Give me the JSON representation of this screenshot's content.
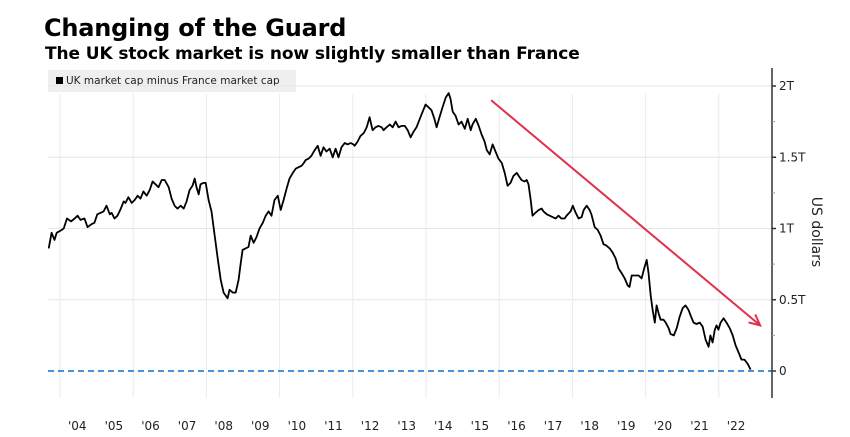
{
  "chart_data": {
    "type": "line",
    "title": "Changing of the Guard",
    "subtitle": "The UK stock market is now slightly smaller than France",
    "legend": [
      {
        "label": "UK market cap minus France market cap",
        "color": "#000000"
      }
    ],
    "legend_position": "top-left",
    "xlabel": "",
    "ylabel": "US dollars",
    "y_axis_side": "right",
    "ylim": [
      -0.2,
      2.1
    ],
    "xlim": [
      2003.7,
      2023.3
    ],
    "yticks": [
      {
        "value": 2.0,
        "label": "2T"
      },
      {
        "value": 1.5,
        "label": "1.5T"
      },
      {
        "value": 1.0,
        "label": "1T"
      },
      {
        "value": 0.5,
        "label": "0.5T"
      },
      {
        "value": 0,
        "label": "0"
      }
    ],
    "xticks": [
      {
        "value": 2004.5,
        "label": "'04"
      },
      {
        "value": 2005.5,
        "label": "'05"
      },
      {
        "value": 2006.5,
        "label": "'06"
      },
      {
        "value": 2007.5,
        "label": "'07"
      },
      {
        "value": 2008.5,
        "label": "'08"
      },
      {
        "value": 2009.5,
        "label": "'09"
      },
      {
        "value": 2010.5,
        "label": "'10"
      },
      {
        "value": 2011.5,
        "label": "'11"
      },
      {
        "value": 2012.5,
        "label": "'12"
      },
      {
        "value": 2013.5,
        "label": "'13"
      },
      {
        "value": 2014.5,
        "label": "'14"
      },
      {
        "value": 2015.5,
        "label": "'15"
      },
      {
        "value": 2016.5,
        "label": "'16"
      },
      {
        "value": 2017.5,
        "label": "'17"
      },
      {
        "value": 2018.5,
        "label": "'18"
      },
      {
        "value": 2019.5,
        "label": "'19"
      },
      {
        "value": 2020.5,
        "label": "'20"
      },
      {
        "value": 2021.5,
        "label": "'21"
      },
      {
        "value": 2022.5,
        "label": "'22"
      }
    ],
    "grid": true,
    "reference_line": {
      "value": 0,
      "style": "dashed",
      "color": "#4a90d9"
    },
    "annotation_arrow": {
      "from": [
        2015.78,
        1.9
      ],
      "to": [
        2023.13,
        0.32
      ],
      "color": "#e0304e"
    },
    "series": [
      {
        "name": "UK market cap minus France market cap",
        "color": "#000000",
        "points": [
          [
            2003.69,
            0.86
          ],
          [
            2003.77,
            0.97
          ],
          [
            2003.85,
            0.92
          ],
          [
            2003.91,
            0.97
          ],
          [
            2004.05,
            0.99
          ],
          [
            2004.1,
            1.0
          ],
          [
            2004.19,
            1.07
          ],
          [
            2004.3,
            1.05
          ],
          [
            2004.4,
            1.07
          ],
          [
            2004.48,
            1.09
          ],
          [
            2004.56,
            1.06
          ],
          [
            2004.67,
            1.07
          ],
          [
            2004.75,
            1.01
          ],
          [
            2004.86,
            1.03
          ],
          [
            2004.94,
            1.04
          ],
          [
            2005.02,
            1.1
          ],
          [
            2005.11,
            1.11
          ],
          [
            2005.19,
            1.12
          ],
          [
            2005.27,
            1.16
          ],
          [
            2005.36,
            1.1
          ],
          [
            2005.41,
            1.11
          ],
          [
            2005.49,
            1.07
          ],
          [
            2005.57,
            1.09
          ],
          [
            2005.66,
            1.14
          ],
          [
            2005.74,
            1.19
          ],
          [
            2005.79,
            1.18
          ],
          [
            2005.87,
            1.22
          ],
          [
            2005.96,
            1.18
          ],
          [
            2006.04,
            1.2
          ],
          [
            2006.12,
            1.23
          ],
          [
            2006.2,
            1.21
          ],
          [
            2006.28,
            1.26
          ],
          [
            2006.37,
            1.23
          ],
          [
            2006.45,
            1.27
          ],
          [
            2006.53,
            1.33
          ],
          [
            2006.61,
            1.31
          ],
          [
            2006.69,
            1.29
          ],
          [
            2006.78,
            1.34
          ],
          [
            2006.86,
            1.34
          ],
          [
            2006.97,
            1.29
          ],
          [
            2007.05,
            1.21
          ],
          [
            2007.13,
            1.16
          ],
          [
            2007.21,
            1.14
          ],
          [
            2007.3,
            1.16
          ],
          [
            2007.38,
            1.14
          ],
          [
            2007.46,
            1.19
          ],
          [
            2007.54,
            1.27
          ],
          [
            2007.62,
            1.3
          ],
          [
            2007.68,
            1.35
          ],
          [
            2007.73,
            1.29
          ],
          [
            2007.79,
            1.24
          ],
          [
            2007.84,
            1.31
          ],
          [
            2007.92,
            1.32
          ],
          [
            2007.98,
            1.32
          ],
          [
            2008.06,
            1.2
          ],
          [
            2008.14,
            1.12
          ],
          [
            2008.22,
            0.96
          ],
          [
            2008.31,
            0.79
          ],
          [
            2008.39,
            0.64
          ],
          [
            2008.47,
            0.55
          ],
          [
            2008.58,
            0.51
          ],
          [
            2008.63,
            0.57
          ],
          [
            2008.72,
            0.55
          ],
          [
            2008.8,
            0.55
          ],
          [
            2008.88,
            0.64
          ],
          [
            2008.93,
            0.74
          ],
          [
            2008.99,
            0.85
          ],
          [
            2009.07,
            0.86
          ],
          [
            2009.15,
            0.87
          ],
          [
            2009.21,
            0.95
          ],
          [
            2009.29,
            0.9
          ],
          [
            2009.37,
            0.94
          ],
          [
            2009.45,
            1.0
          ],
          [
            2009.54,
            1.04
          ],
          [
            2009.62,
            1.09
          ],
          [
            2009.7,
            1.12
          ],
          [
            2009.78,
            1.09
          ],
          [
            2009.86,
            1.2
          ],
          [
            2009.95,
            1.23
          ],
          [
            2010.03,
            1.13
          ],
          [
            2010.11,
            1.2
          ],
          [
            2010.19,
            1.28
          ],
          [
            2010.27,
            1.35
          ],
          [
            2010.36,
            1.39
          ],
          [
            2010.44,
            1.42
          ],
          [
            2010.52,
            1.43
          ],
          [
            2010.6,
            1.44
          ],
          [
            2010.66,
            1.46
          ],
          [
            2010.71,
            1.48
          ],
          [
            2010.79,
            1.49
          ],
          [
            2010.87,
            1.51
          ],
          [
            2010.96,
            1.55
          ],
          [
            2011.04,
            1.58
          ],
          [
            2011.12,
            1.51
          ],
          [
            2011.2,
            1.57
          ],
          [
            2011.28,
            1.54
          ],
          [
            2011.37,
            1.56
          ],
          [
            2011.45,
            1.5
          ],
          [
            2011.53,
            1.56
          ],
          [
            2011.61,
            1.5
          ],
          [
            2011.69,
            1.57
          ],
          [
            2011.78,
            1.6
          ],
          [
            2011.86,
            1.59
          ],
          [
            2011.94,
            1.6
          ],
          [
            2012.02,
            1.59
          ],
          [
            2012.05,
            1.58
          ],
          [
            2012.13,
            1.61
          ],
          [
            2012.21,
            1.65
          ],
          [
            2012.3,
            1.67
          ],
          [
            2012.38,
            1.71
          ],
          [
            2012.46,
            1.78
          ],
          [
            2012.54,
            1.69
          ],
          [
            2012.62,
            1.71
          ],
          [
            2012.7,
            1.72
          ],
          [
            2012.79,
            1.71
          ],
          [
            2012.84,
            1.69
          ],
          [
            2012.92,
            1.71
          ],
          [
            2013.01,
            1.73
          ],
          [
            2013.09,
            1.71
          ],
          [
            2013.17,
            1.75
          ],
          [
            2013.25,
            1.71
          ],
          [
            2013.33,
            1.72
          ],
          [
            2013.42,
            1.72
          ],
          [
            2013.5,
            1.69
          ],
          [
            2013.58,
            1.64
          ],
          [
            2013.66,
            1.68
          ],
          [
            2013.74,
            1.71
          ],
          [
            2013.83,
            1.77
          ],
          [
            2013.91,
            1.82
          ],
          [
            2013.99,
            1.87
          ],
          [
            2014.07,
            1.85
          ],
          [
            2014.15,
            1.83
          ],
          [
            2014.23,
            1.77
          ],
          [
            2014.29,
            1.71
          ],
          [
            2014.37,
            1.78
          ],
          [
            2014.45,
            1.85
          ],
          [
            2014.54,
            1.92
          ],
          [
            2014.62,
            1.95
          ],
          [
            2014.67,
            1.91
          ],
          [
            2014.73,
            1.82
          ],
          [
            2014.81,
            1.79
          ],
          [
            2014.89,
            1.73
          ],
          [
            2014.97,
            1.75
          ],
          [
            2015.06,
            1.7
          ],
          [
            2015.14,
            1.77
          ],
          [
            2015.22,
            1.69
          ],
          [
            2015.27,
            1.73
          ],
          [
            2015.36,
            1.77
          ],
          [
            2015.44,
            1.72
          ],
          [
            2015.52,
            1.66
          ],
          [
            2015.6,
            1.61
          ],
          [
            2015.66,
            1.55
          ],
          [
            2015.74,
            1.52
          ],
          [
            2015.82,
            1.59
          ],
          [
            2015.9,
            1.54
          ],
          [
            2015.98,
            1.49
          ],
          [
            2016.07,
            1.46
          ],
          [
            2016.15,
            1.39
          ],
          [
            2016.23,
            1.3
          ],
          [
            2016.31,
            1.32
          ],
          [
            2016.39,
            1.37
          ],
          [
            2016.48,
            1.39
          ],
          [
            2016.53,
            1.37
          ],
          [
            2016.61,
            1.34
          ],
          [
            2016.69,
            1.33
          ],
          [
            2016.75,
            1.34
          ],
          [
            2016.8,
            1.31
          ],
          [
            2016.86,
            1.2
          ],
          [
            2016.91,
            1.09
          ],
          [
            2016.99,
            1.11
          ],
          [
            2017.08,
            1.13
          ],
          [
            2017.16,
            1.14
          ],
          [
            2017.21,
            1.12
          ],
          [
            2017.3,
            1.1
          ],
          [
            2017.38,
            1.09
          ],
          [
            2017.46,
            1.08
          ],
          [
            2017.54,
            1.07
          ],
          [
            2017.62,
            1.09
          ],
          [
            2017.7,
            1.07
          ],
          [
            2017.79,
            1.07
          ],
          [
            2017.84,
            1.09
          ],
          [
            2017.95,
            1.12
          ],
          [
            2018.01,
            1.16
          ],
          [
            2018.09,
            1.11
          ],
          [
            2018.17,
            1.07
          ],
          [
            2018.25,
            1.08
          ],
          [
            2018.31,
            1.13
          ],
          [
            2018.39,
            1.16
          ],
          [
            2018.47,
            1.13
          ],
          [
            2018.52,
            1.1
          ],
          [
            2018.61,
            1.01
          ],
          [
            2018.69,
            0.99
          ],
          [
            2018.77,
            0.95
          ],
          [
            2018.85,
            0.89
          ],
          [
            2018.93,
            0.88
          ],
          [
            2019.02,
            0.86
          ],
          [
            2019.1,
            0.83
          ],
          [
            2019.18,
            0.79
          ],
          [
            2019.26,
            0.72
          ],
          [
            2019.34,
            0.69
          ],
          [
            2019.43,
            0.65
          ],
          [
            2019.51,
            0.6
          ],
          [
            2019.56,
            0.59
          ],
          [
            2019.62,
            0.67
          ],
          [
            2019.7,
            0.67
          ],
          [
            2019.81,
            0.67
          ],
          [
            2019.89,
            0.65
          ],
          [
            2019.95,
            0.71
          ],
          [
            2020.03,
            0.78
          ],
          [
            2020.08,
            0.69
          ],
          [
            2020.14,
            0.53
          ],
          [
            2020.19,
            0.43
          ],
          [
            2020.25,
            0.34
          ],
          [
            2020.3,
            0.46
          ],
          [
            2020.36,
            0.4
          ],
          [
            2020.41,
            0.36
          ],
          [
            2020.49,
            0.36
          ],
          [
            2020.55,
            0.34
          ],
          [
            2020.63,
            0.3
          ],
          [
            2020.68,
            0.26
          ],
          [
            2020.77,
            0.25
          ],
          [
            2020.85,
            0.3
          ],
          [
            2020.93,
            0.38
          ],
          [
            2021.01,
            0.44
          ],
          [
            2021.09,
            0.46
          ],
          [
            2021.17,
            0.43
          ],
          [
            2021.23,
            0.39
          ],
          [
            2021.31,
            0.34
          ],
          [
            2021.39,
            0.33
          ],
          [
            2021.48,
            0.34
          ],
          [
            2021.56,
            0.31
          ],
          [
            2021.64,
            0.22
          ],
          [
            2021.72,
            0.17
          ],
          [
            2021.77,
            0.25
          ],
          [
            2021.83,
            0.2
          ],
          [
            2021.89,
            0.29
          ],
          [
            2021.94,
            0.32
          ],
          [
            2021.99,
            0.29
          ],
          [
            2022.05,
            0.34
          ],
          [
            2022.13,
            0.37
          ],
          [
            2022.21,
            0.34
          ],
          [
            2022.3,
            0.3
          ],
          [
            2022.38,
            0.25
          ],
          [
            2022.46,
            0.18
          ],
          [
            2022.54,
            0.13
          ],
          [
            2022.62,
            0.08
          ],
          [
            2022.7,
            0.08
          ],
          [
            2022.79,
            0.05
          ],
          [
            2022.87,
            0.01
          ]
        ]
      }
    ]
  }
}
